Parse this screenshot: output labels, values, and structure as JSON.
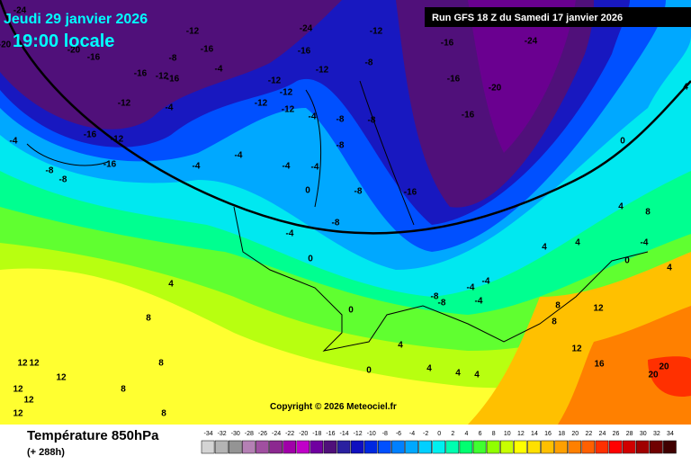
{
  "header": {
    "date": "Jeudi 29 janvier 2026",
    "time": "19:00 locale",
    "run": "Run GFS 18 Z du Samedi 17 janvier 2026"
  },
  "copyright": "Copyright © 2026 Meteociel.fr",
  "footer": {
    "title": "Température 850hPa",
    "lead": "(+ 288h)"
  },
  "scale": [
    {
      "value": -34,
      "color": "#d4d4d4"
    },
    {
      "value": -32,
      "color": "#b4b4b4"
    },
    {
      "value": -30,
      "color": "#949494"
    },
    {
      "value": -28,
      "color": "#b480b4"
    },
    {
      "value": -26,
      "color": "#a050a0"
    },
    {
      "value": -24,
      "color": "#8c2890"
    },
    {
      "value": -22,
      "color": "#a000a8"
    },
    {
      "value": -20,
      "color": "#c000c8"
    },
    {
      "value": -18,
      "color": "#7000a0"
    },
    {
      "value": -16,
      "color": "#50107a"
    },
    {
      "value": -14,
      "color": "#2a20a0"
    },
    {
      "value": -12,
      "color": "#1010c0"
    },
    {
      "value": -10,
      "color": "#0028e0"
    },
    {
      "value": -8,
      "color": "#0050ff"
    },
    {
      "value": -6,
      "color": "#0080ff"
    },
    {
      "value": -4,
      "color": "#00a8ff"
    },
    {
      "value": -2,
      "color": "#00d0ff"
    },
    {
      "value": 0,
      "color": "#00f0f0"
    },
    {
      "value": 2,
      "color": "#00ffb0"
    },
    {
      "value": 4,
      "color": "#00ff70"
    },
    {
      "value": 6,
      "color": "#40ff30"
    },
    {
      "value": 8,
      "color": "#90ff00"
    },
    {
      "value": 10,
      "color": "#c8ff00"
    },
    {
      "value": 12,
      "color": "#ffff00"
    },
    {
      "value": 14,
      "color": "#ffe000"
    },
    {
      "value": 16,
      "color": "#ffc000"
    },
    {
      "value": 18,
      "color": "#ffa000"
    },
    {
      "value": 20,
      "color": "#ff8000"
    },
    {
      "value": 22,
      "color": "#ff6000"
    },
    {
      "value": 24,
      "color": "#ff3000"
    },
    {
      "value": 26,
      "color": "#ff0000"
    },
    {
      "value": 28,
      "color": "#d00000"
    },
    {
      "value": 30,
      "color": "#a00000"
    },
    {
      "value": 32,
      "color": "#700000"
    },
    {
      "value": 34,
      "color": "#400000"
    }
  ],
  "map_labels": [
    -24,
    -20,
    -20,
    -16,
    -16,
    -12,
    -16,
    -12,
    -16,
    -8,
    -12,
    -16,
    -12,
    -16,
    -8,
    -8,
    -4,
    -4,
    -4,
    -4,
    -12,
    -12,
    -12,
    -12,
    -16,
    -12,
    -12,
    -8,
    -8,
    -8,
    -8,
    -4,
    -4,
    -4,
    -4,
    0,
    -8,
    -8,
    -4,
    0,
    -16,
    -24,
    -16,
    -20,
    -16,
    -16,
    0,
    -24,
    4,
    8,
    8,
    12,
    12,
    12,
    8,
    12,
    12,
    12,
    8,
    0,
    -8,
    -8,
    -4,
    -4,
    -4,
    4,
    0,
    4,
    4,
    8,
    8,
    12,
    12,
    16,
    20,
    20,
    4,
    8,
    4,
    0,
    -4,
    4,
    4,
    4,
    4
  ]
}
